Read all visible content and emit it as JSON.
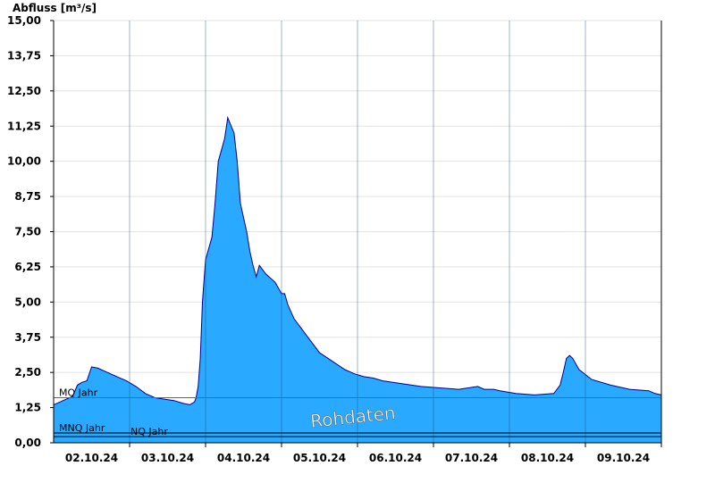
{
  "chart_data": {
    "type": "area",
    "ylabel": "Abfluss [m³/s]",
    "ylim": [
      0,
      15
    ],
    "xlim": [
      "2024-10-01T22:00",
      "2024-10-09T22:00"
    ],
    "y_ticks": [
      "0,00",
      "1,25",
      "2,50",
      "3,75",
      "5,00",
      "6,25",
      "7,50",
      "8,75",
      "10,00",
      "11,25",
      "12,50",
      "13,75",
      "15,00"
    ],
    "x_ticks": [
      "02.10.24",
      "03.10.24",
      "04.10.24",
      "05.10.24",
      "06.10.24",
      "07.10.24",
      "08.10.24",
      "09.10.24"
    ],
    "grid": "horizontal",
    "colors": {
      "fill": "#29a9ff",
      "line": "#00008b",
      "mq": "#2e8b2e",
      "ref": "#000000"
    },
    "series": [
      {
        "name": "Abfluss",
        "x": [
          "2024-10-01T22:00",
          "2024-10-02T00:00",
          "2024-10-02T02:00",
          "2024-10-02T04:00",
          "2024-10-02T05:30",
          "2024-10-02T07:00",
          "2024-10-02T08:30",
          "2024-10-02T10:00",
          "2024-10-02T12:00",
          "2024-10-02T15:00",
          "2024-10-02T18:00",
          "2024-10-02T21:00",
          "2024-10-03T00:00",
          "2024-10-03T03:00",
          "2024-10-03T06:00",
          "2024-10-03T09:00",
          "2024-10-03T12:00",
          "2024-10-03T15:00",
          "2024-10-03T17:00",
          "2024-10-03T18:30",
          "2024-10-03T19:00",
          "2024-10-03T19:40",
          "2024-10-03T20:20",
          "2024-10-03T21:00",
          "2024-10-03T22:00",
          "2024-10-04T00:00",
          "2024-10-04T01:00",
          "2024-10-04T02:00",
          "2024-10-04T04:00",
          "2024-10-04T05:00",
          "2024-10-04T07:00",
          "2024-10-04T08:00",
          "2024-10-04T09:00",
          "2024-10-04T11:00",
          "2024-10-04T12:00",
          "2024-10-04T13:00",
          "2024-10-04T14:00",
          "2024-10-04T15:00",
          "2024-10-04T17:00",
          "2024-10-04T20:00",
          "2024-10-04T22:00",
          "2024-10-04T23:00",
          "2024-10-05T00:00",
          "2024-10-05T02:00",
          "2024-10-05T04:00",
          "2024-10-05T06:00",
          "2024-10-05T08:00",
          "2024-10-05T10:00",
          "2024-10-05T12:00",
          "2024-10-05T14:00",
          "2024-10-05T16:00",
          "2024-10-05T18:00",
          "2024-10-05T21:00",
          "2024-10-06T00:00",
          "2024-10-06T03:00",
          "2024-10-06T06:00",
          "2024-10-06T12:00",
          "2024-10-06T18:00",
          "2024-10-07T00:00",
          "2024-10-07T06:00",
          "2024-10-07T12:00",
          "2024-10-07T14:00",
          "2024-10-07T15:00",
          "2024-10-07T17:00",
          "2024-10-07T19:00",
          "2024-10-08T00:00",
          "2024-10-08T06:00",
          "2024-10-08T12:00",
          "2024-10-08T14:00",
          "2024-10-08T15:00",
          "2024-10-08T16:00",
          "2024-10-08T17:00",
          "2024-10-08T18:00",
          "2024-10-08T20:00",
          "2024-10-09T00:00",
          "2024-10-09T06:00",
          "2024-10-09T12:00",
          "2024-10-09T18:00",
          "2024-10-09T20:00",
          "2024-10-09T22:00"
        ],
        "y": [
          1.35,
          1.45,
          1.55,
          1.65,
          2.05,
          2.15,
          2.2,
          2.7,
          2.65,
          2.5,
          2.35,
          2.2,
          2.0,
          1.75,
          1.6,
          1.55,
          1.5,
          1.4,
          1.35,
          1.45,
          1.6,
          2.0,
          3.0,
          5.0,
          6.5,
          7.3,
          8.5,
          10.0,
          10.8,
          11.55,
          11.0,
          10.0,
          8.5,
          7.5,
          6.8,
          6.3,
          5.9,
          6.3,
          6.0,
          5.7,
          5.3,
          5.3,
          4.9,
          4.4,
          4.1,
          3.8,
          3.5,
          3.2,
          3.05,
          2.9,
          2.75,
          2.6,
          2.45,
          2.35,
          2.3,
          2.2,
          2.1,
          2.0,
          1.95,
          1.9,
          2.0,
          1.9,
          1.9,
          1.9,
          1.85,
          1.75,
          1.7,
          1.75,
          2.05,
          2.5,
          3.0,
          3.1,
          3.0,
          2.6,
          2.25,
          2.05,
          1.9,
          1.85,
          1.75,
          1.7
        ]
      }
    ],
    "reference_lines": [
      {
        "label": "MQ Jahr",
        "value": 1.6
      },
      {
        "label": "MNQ Jahr",
        "value": 0.35
      },
      {
        "label": "NQ Jahr",
        "value": 0.22
      }
    ],
    "annotations": [
      "Rohdaten"
    ]
  }
}
